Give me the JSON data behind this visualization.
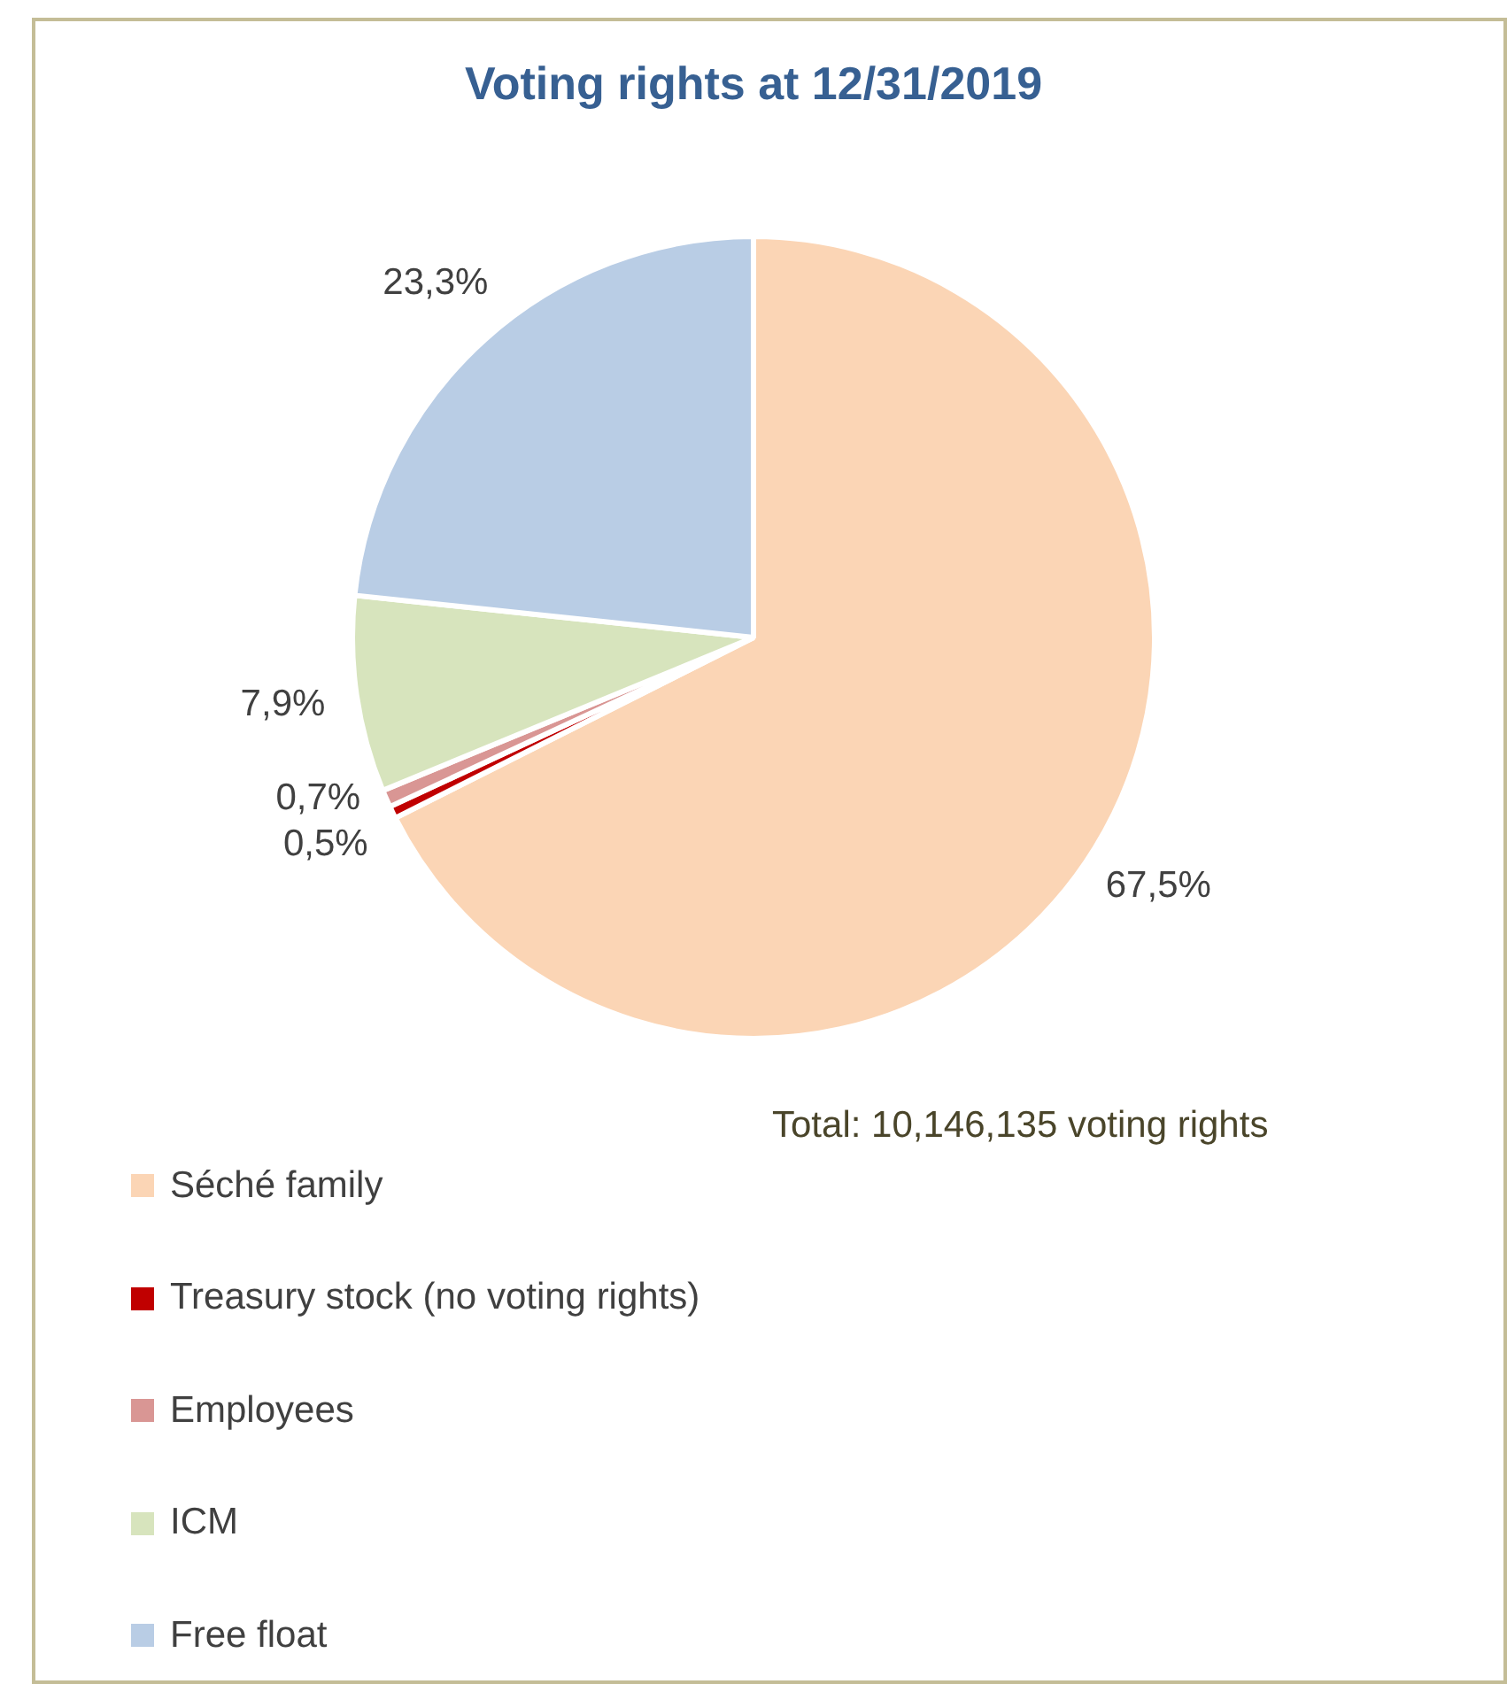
{
  "chart_data": {
    "type": "pie",
    "title": "Voting rights at 12/31/2019",
    "categories": [
      "Séché family",
      "Treasury stock (no voting rights)",
      "Employees",
      "ICM",
      "Free float"
    ],
    "values": [
      67.5,
      0.5,
      0.7,
      7.9,
      23.3
    ],
    "value_labels": [
      "67,5%",
      "0,5%",
      "0,7%",
      "7,9%",
      "23,3%"
    ],
    "colors": [
      "#fbd5b5",
      "#c00000",
      "#d99694",
      "#d7e4bd",
      "#b9cde5"
    ],
    "legend": "bottom",
    "annotations": [
      "Total: 10,146,135 voting rights"
    ]
  }
}
